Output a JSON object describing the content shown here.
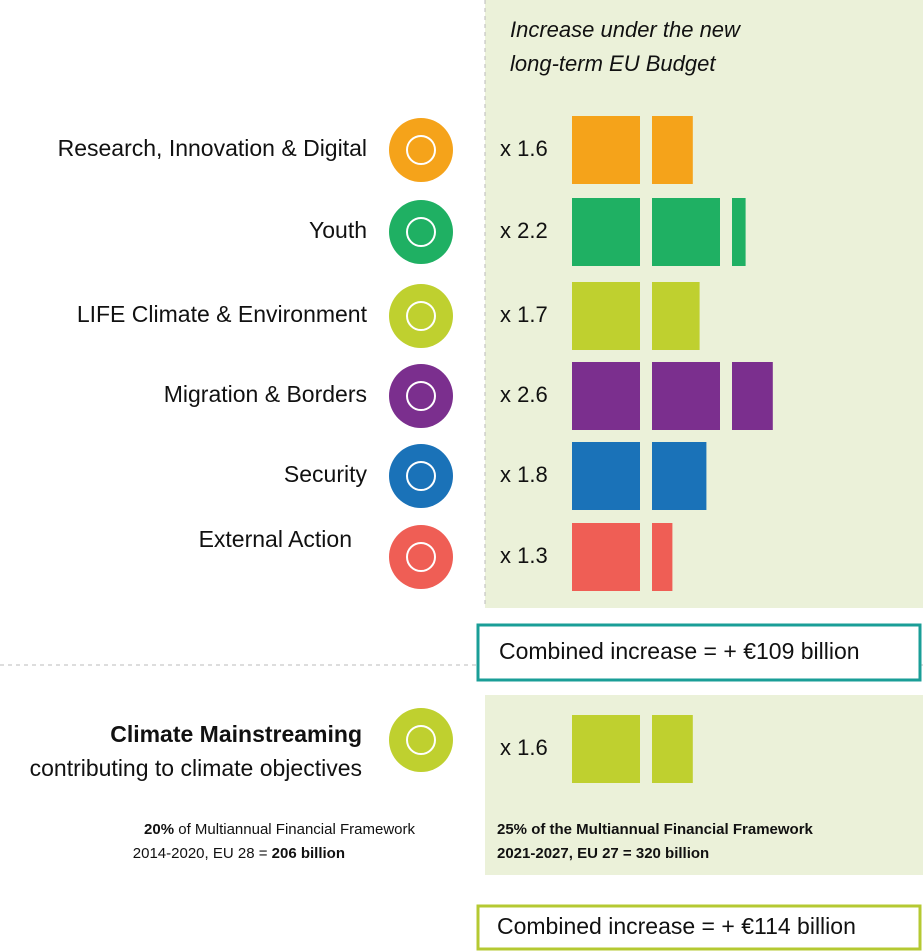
{
  "header": {
    "line1": "Increase under the new",
    "line2": "long-term EU Budget"
  },
  "rows": [
    {
      "label": "Research, Innovation & Digital",
      "factor_label": "x 1.6",
      "factor": 1.6,
      "color": "#f5a31a"
    },
    {
      "label": "Youth",
      "factor_label": "x 2.2",
      "factor": 2.2,
      "color": "#1fb063"
    },
    {
      "label": "LIFE Climate & Environment",
      "factor_label": "x 1.7",
      "factor": 1.7,
      "color": "#bfd02f"
    },
    {
      "label": "Migration & Borders",
      "factor_label": "x 2.6",
      "factor": 2.6,
      "color": "#7b2f8e"
    },
    {
      "label": "Security",
      "factor_label": "x 1.8",
      "factor": 1.8,
      "color": "#1a72b8"
    },
    {
      "label": "External Action",
      "factor_label": "x 1.3",
      "factor": 1.3,
      "color": "#ef5e55"
    }
  ],
  "combined1": "Combined increase = + €109 billion",
  "climate": {
    "title": "Climate Mainstreaming",
    "subtitle": "contributing to climate objectives",
    "factor_label": "x 1.6",
    "factor": 1.6,
    "color": "#bfd02f",
    "left_note": {
      "bold1": "20%",
      "text1": " of Multiannual Financial Framework",
      "text2": "2014-2020, EU 28 = ",
      "bold2": "206 billion"
    },
    "right_note": {
      "line1": "25% of the Multiannual Financial Framework",
      "line2": "2021-2027, EU 27 = 320 billion"
    }
  },
  "combined2": "Combined increase = + €114 billion"
}
